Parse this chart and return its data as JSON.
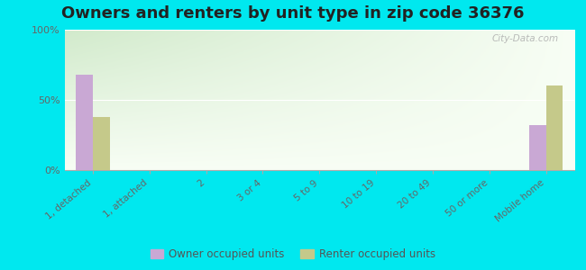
{
  "title": "Owners and renters by unit type in zip code 36376",
  "categories": [
    "1, detached",
    "1, attached",
    "2",
    "3 or 4",
    "5 to 9",
    "10 to 19",
    "20 to 49",
    "50 or more",
    "Mobile home"
  ],
  "owner_values": [
    68,
    0,
    0,
    0,
    0,
    0,
    0,
    0,
    32
  ],
  "renter_values": [
    38,
    0,
    0,
    0,
    0,
    0,
    0,
    0,
    60
  ],
  "owner_color": "#c9a8d4",
  "renter_color": "#c5c98a",
  "plot_bg_topleft": "#b8ddb0",
  "plot_bg_bottomright": "#f8fef5",
  "outer_bg": "#00e8ef",
  "ylim": [
    0,
    100
  ],
  "yticks": [
    0,
    50,
    100
  ],
  "ytick_labels": [
    "0%",
    "50%",
    "100%"
  ],
  "bar_width": 0.3,
  "legend_owner": "Owner occupied units",
  "legend_renter": "Renter occupied units",
  "title_fontsize": 13,
  "watermark": "City-Data.com"
}
